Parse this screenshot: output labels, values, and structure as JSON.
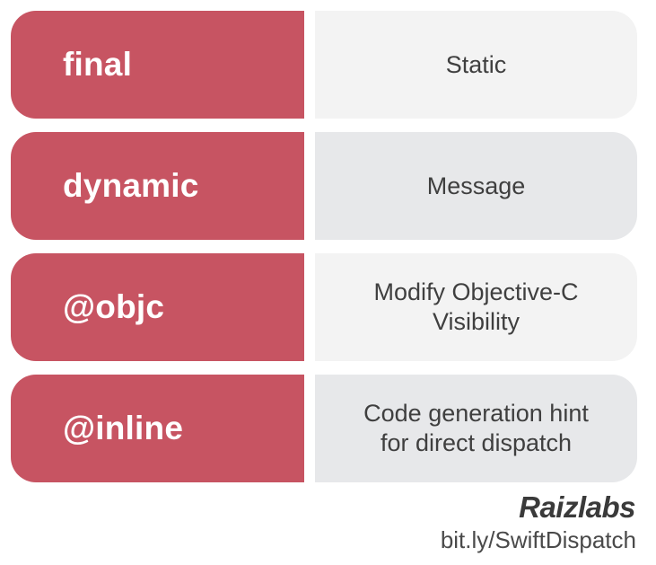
{
  "rows": [
    {
      "keyword": "final",
      "meaning_line1": "Static",
      "meaning_line2": ""
    },
    {
      "keyword": "dynamic",
      "meaning_line1": "Message",
      "meaning_line2": ""
    },
    {
      "keyword": "@objc",
      "meaning_line1": "Modify Objective-C",
      "meaning_line2": "Visibility"
    },
    {
      "keyword": "@inline",
      "meaning_line1": "Code generation hint",
      "meaning_line2": "for direct dispatch"
    }
  ],
  "footer": {
    "brand": "Raizlabs",
    "link": "bit.ly/SwiftDispatch"
  },
  "colors": {
    "keyword_bg": "#c75462",
    "meaning_light": "#f3f3f3",
    "meaning_dark": "#e7e8ea"
  }
}
